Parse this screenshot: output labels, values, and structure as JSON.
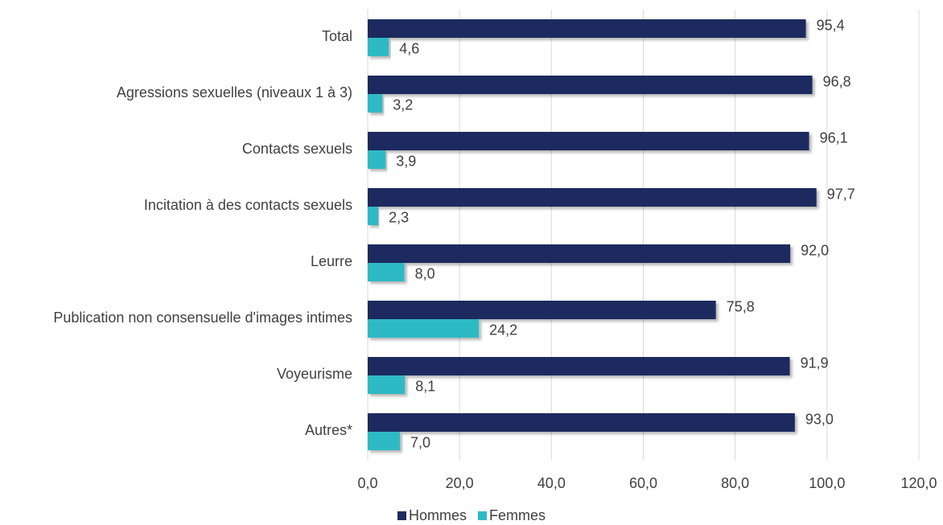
{
  "chart_data": {
    "type": "bar",
    "orientation": "horizontal",
    "categories": [
      "Total",
      "Agressions sexuelles (niveaux 1 à 3)",
      "Contacts sexuels",
      "Incitation à des contacts sexuels",
      "Leurre ",
      "Publication non consensuelle d'images intimes",
      "Voyeurisme",
      "Autres*"
    ],
    "series": [
      {
        "name": "Hommes",
        "color": "#1f2b5e",
        "values": [
          95.4,
          96.8,
          96.1,
          97.7,
          92.0,
          75.8,
          91.9,
          93.0
        ],
        "labels": [
          "95,4",
          "96,8",
          "96,1",
          "97,7",
          "92,0",
          "75,8",
          "91,9",
          "93,0"
        ]
      },
      {
        "name": "Femmes",
        "color": "#2dbac4",
        "values": [
          4.6,
          3.2,
          3.9,
          2.3,
          8.0,
          24.2,
          8.1,
          7.0
        ],
        "labels": [
          "4,6",
          "3,2",
          "3,9",
          "2,3",
          "8,0",
          "24,2",
          "8,1",
          "7,0"
        ]
      }
    ],
    "xlim": [
      0,
      120
    ],
    "xticks": [
      0,
      20,
      40,
      60,
      80,
      100,
      120
    ],
    "xtick_labels": [
      "0,0",
      "20,0",
      "40,0",
      "60,0",
      "80,0",
      "100,0",
      "120,0"
    ],
    "grid": true,
    "legend_position": "bottom"
  }
}
